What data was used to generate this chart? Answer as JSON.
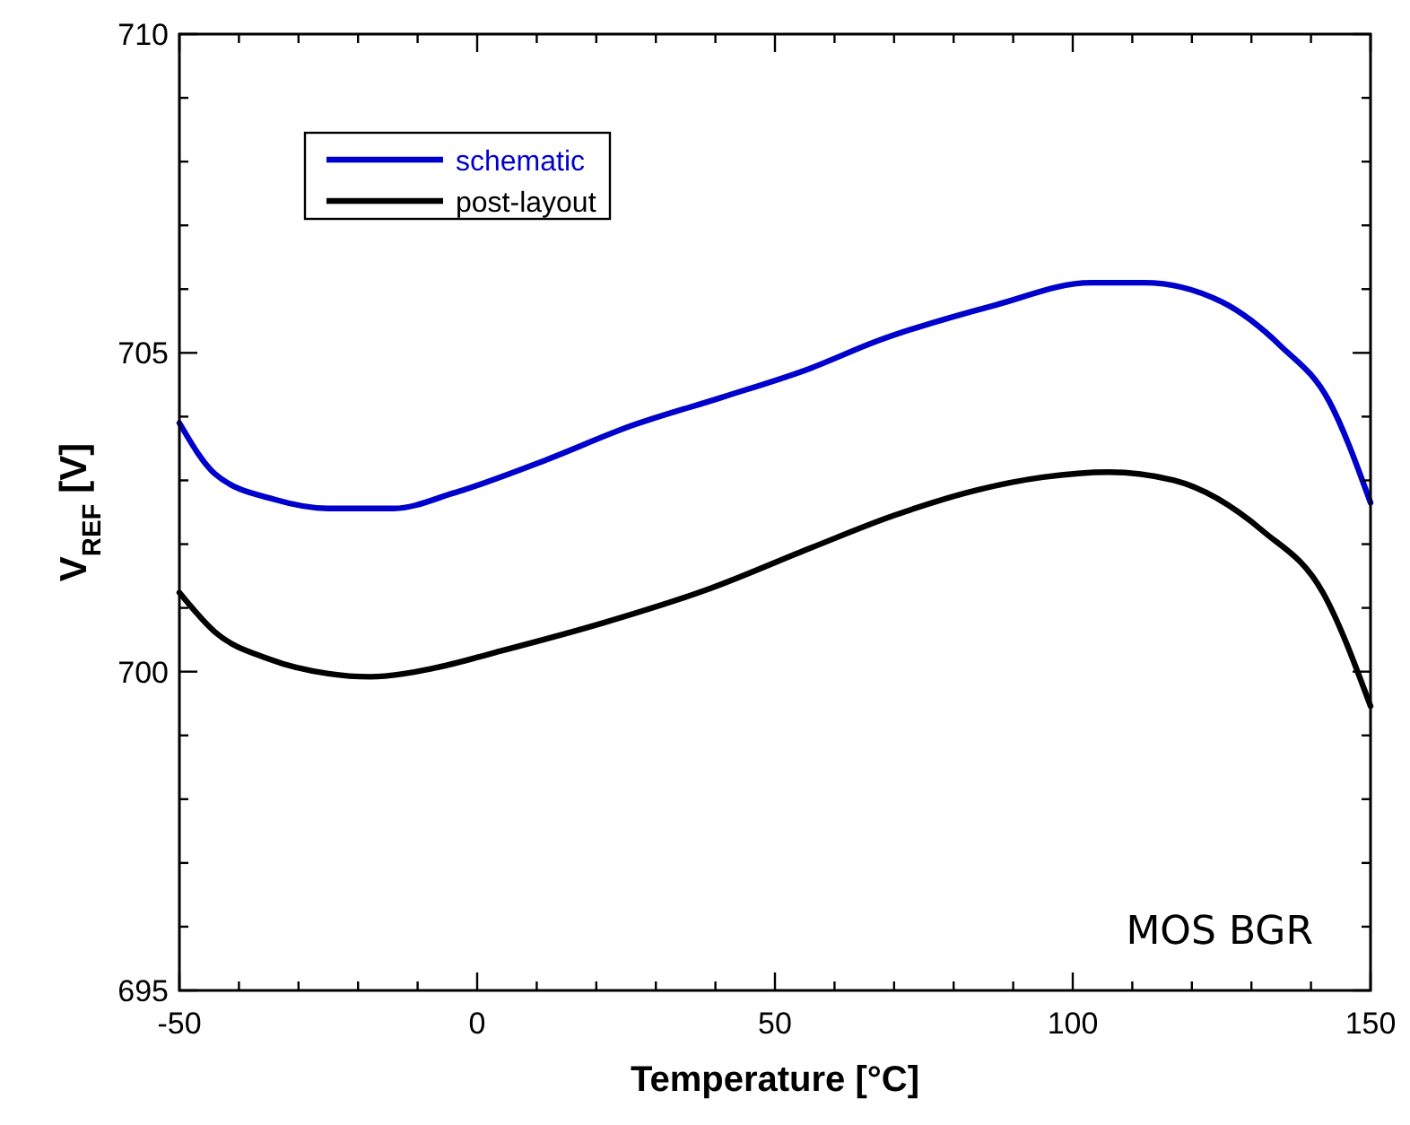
{
  "chart_data": {
    "type": "line",
    "xlabel": "Temperature [°C]",
    "ylabel": "V$_{REF}$ [V]",
    "xlim": [
      -50,
      150
    ],
    "ylim": [
      695,
      710
    ],
    "xticks": [
      -50,
      {
        "value": -40,
        "label": null
      },
      {
        "value": -30,
        "label": null
      },
      {
        "value": -20,
        "label": null
      },
      {
        "value": -10,
        "label": null
      },
      0,
      {
        "value": 10,
        "label": null
      },
      {
        "value": 20,
        "label": null
      },
      {
        "value": 30,
        "label": null
      },
      {
        "value": 40,
        "label": null
      },
      50,
      {
        "value": 60,
        "label": null
      },
      {
        "value": 70,
        "label": null
      },
      {
        "value": 80,
        "label": null
      },
      {
        "value": 90,
        "label": null
      },
      100,
      {
        "value": 110,
        "label": null
      },
      {
        "value": 120,
        "label": null
      },
      {
        "value": 130,
        "label": null
      },
      {
        "value": 140,
        "label": null
      },
      150
    ],
    "yticks": [
      695,
      {
        "value": 696,
        "label": null
      },
      {
        "value": 697,
        "label": null
      },
      {
        "value": 698,
        "label": null
      },
      {
        "value": 699,
        "label": null
      },
      700,
      {
        "value": 701,
        "label": null
      },
      {
        "value": 702,
        "label": null
      },
      {
        "value": 703,
        "label": null
      },
      {
        "value": 704,
        "label": null
      },
      705,
      {
        "value": 706,
        "label": null
      },
      {
        "value": 707,
        "label": null
      },
      {
        "value": 708,
        "label": null
      },
      {
        "value": 709,
        "label": null
      },
      710
    ],
    "grid": false,
    "legend": "top left",
    "line_style": "solid",
    "annotations": [
      "MOS BGR"
    ],
    "series": [
      {
        "name": "schematic",
        "color": "#0000cc",
        "x": [
          -50,
          -44,
          -34,
          -25,
          -14,
          -4,
          11,
          26,
          41,
          56,
          67,
          87,
          103,
          112,
          125,
          135,
          143,
          150
        ],
        "values": [
          703.9,
          703.1,
          702.7,
          702.56,
          702.56,
          702.8,
          703.3,
          703.86,
          704.3,
          704.76,
          705.18,
          705.75,
          706.1,
          706.1,
          705.8,
          705.1,
          704.25,
          702.65
        ]
      },
      {
        "name": "post-layout",
        "color": "#000000",
        "x": [
          -50,
          -44,
          -35,
          -25,
          -18,
          -7,
          3,
          21,
          39,
          56,
          70,
          84,
          95,
          106,
          117,
          132,
          142,
          150
        ],
        "values": [
          701.24,
          700.62,
          700.2,
          699.97,
          699.92,
          700.06,
          700.3,
          700.76,
          701.3,
          701.94,
          702.45,
          702.85,
          703.05,
          703.13,
          703.0,
          702.2,
          701.24,
          699.46
        ]
      }
    ]
  }
}
